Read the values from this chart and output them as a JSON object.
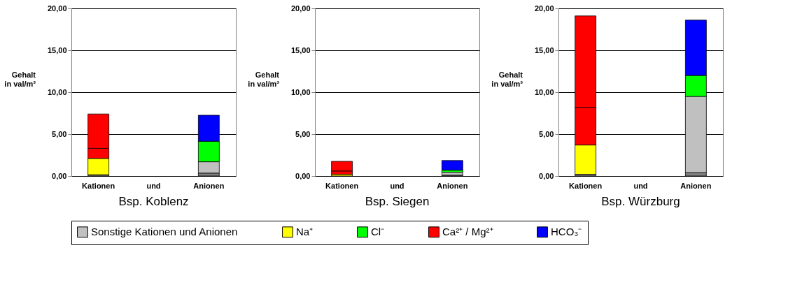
{
  "chart_data": [
    {
      "type": "bar",
      "stacked": true,
      "title": "Bsp. Koblenz",
      "ylabel": "Gehalt in val/m³",
      "categories": [
        "Kationen",
        "und",
        "Anionen"
      ],
      "ylim": [
        0,
        20
      ],
      "yticks": [
        {
          "value": 0,
          "label": "0,00"
        },
        {
          "value": 5,
          "label": "5,00"
        },
        {
          "value": 10,
          "label": "10,00"
        },
        {
          "value": 15,
          "label": "15,00"
        },
        {
          "value": 20,
          "label": "20,00"
        }
      ],
      "grid": "y",
      "legend": "bottom",
      "series": [
        {
          "color": "#808080",
          "values": [
            0.15,
            null,
            0.35
          ]
        },
        {
          "name": "Sonstige Kationen und Anionen",
          "color": "#c0c0c0",
          "values": [
            null,
            null,
            1.35
          ]
        },
        {
          "name": "Na⁺",
          "color": "#ffff00",
          "values": [
            1.95,
            null,
            null
          ]
        },
        {
          "name": "Cl⁻",
          "color": "#00ff00",
          "values": [
            null,
            null,
            2.45
          ]
        },
        {
          "name": "Ca²⁺ / Mg²⁺",
          "color": "#ff0000",
          "values": [
            1.2,
            null,
            null
          ]
        },
        {
          "color": "#ff0000",
          "values": [
            4.1,
            null,
            null
          ]
        },
        {
          "name": "HCO₃⁻",
          "color": "#0000ff",
          "values": [
            null,
            null,
            3.1
          ]
        }
      ]
    },
    {
      "type": "bar",
      "stacked": true,
      "title": "Bsp. Siegen",
      "ylabel": "Gehalt in val/m³",
      "categories": [
        "Kationen",
        "und",
        "Anionen"
      ],
      "ylim": [
        0,
        20
      ],
      "yticks": [
        {
          "value": 0,
          "label": "0,00"
        },
        {
          "value": 5,
          "label": "5,00"
        },
        {
          "value": 10,
          "label": "10,00"
        },
        {
          "value": 15,
          "label": "15,00"
        },
        {
          "value": 20,
          "label": "20,00"
        }
      ],
      "grid": "y",
      "legend": "bottom",
      "series": [
        {
          "color": "#808080",
          "values": [
            null,
            null,
            0.1
          ]
        },
        {
          "name": "Sonstige Kationen und Anionen",
          "color": "#c0c0c0",
          "values": [
            null,
            null,
            0.35
          ]
        },
        {
          "name": "Na⁺",
          "color": "#ffff00",
          "values": [
            0.2,
            null,
            null
          ]
        },
        {
          "name": "Cl⁻",
          "color": "#00ff00",
          "values": [
            null,
            null,
            0.25
          ]
        },
        {
          "name": "Ca²⁺ / Mg²⁺",
          "color": "#ff0000",
          "values": [
            0.4,
            null,
            null
          ]
        },
        {
          "color": "#ff0000",
          "values": [
            1.15,
            null,
            null
          ]
        },
        {
          "name": "HCO₃⁻",
          "color": "#0000ff",
          "values": [
            null,
            null,
            1.15
          ]
        }
      ]
    },
    {
      "type": "bar",
      "stacked": true,
      "title": "Bsp. Würzburg",
      "ylabel": "Gehalt in val/m³",
      "categories": [
        "Kationen",
        "und",
        "Anionen"
      ],
      "ylim": [
        0,
        20
      ],
      "yticks": [
        {
          "value": 0,
          "label": "0,00"
        },
        {
          "value": 5,
          "label": "5,00"
        },
        {
          "value": 10,
          "label": "10,00"
        },
        {
          "value": 15,
          "label": "15,00"
        },
        {
          "value": 20,
          "label": "20,00"
        }
      ],
      "grid": "y",
      "legend": "bottom",
      "series": [
        {
          "color": "#808080",
          "values": [
            0.2,
            null,
            0.4
          ]
        },
        {
          "name": "Sonstige Kationen und Anionen",
          "color": "#c0c0c0",
          "values": [
            null,
            null,
            9.1
          ]
        },
        {
          "name": "Na⁺",
          "color": "#ffff00",
          "values": [
            3.5,
            null,
            null
          ]
        },
        {
          "name": "Cl⁻",
          "color": "#00ff00",
          "values": [
            null,
            null,
            2.5
          ]
        },
        {
          "name": "Ca²⁺ / Mg²⁺",
          "color": "#ff0000",
          "values": [
            4.5,
            null,
            null
          ]
        },
        {
          "color": "#ff0000",
          "values": [
            10.9,
            null,
            null
          ]
        },
        {
          "name": "HCO₃⁻",
          "color": "#0000ff",
          "values": [
            null,
            null,
            6.6
          ]
        }
      ]
    }
  ]
}
